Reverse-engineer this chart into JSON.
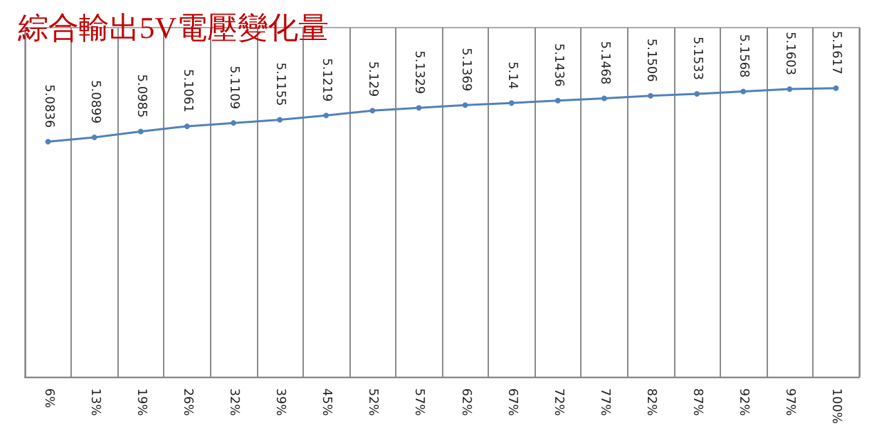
{
  "chart_data": {
    "type": "line",
    "title": "綜合輸出5V電壓變化量",
    "categories": [
      "6%",
      "13%",
      "19%",
      "26%",
      "32%",
      "39%",
      "45%",
      "52%",
      "57%",
      "62%",
      "67%",
      "72%",
      "77%",
      "82%",
      "87%",
      "92%",
      "97%",
      "100%"
    ],
    "series": [
      {
        "color": "#4f81bd",
        "values": [
          5.0836,
          5.0899,
          5.0985,
          5.1061,
          5.1109,
          5.1155,
          5.1219,
          5.129,
          5.1329,
          5.1369,
          5.14,
          5.1436,
          5.1468,
          5.1506,
          5.1533,
          5.1568,
          5.1603,
          5.1617
        ]
      }
    ],
    "ylim": [
      4.74,
      5.25
    ],
    "data_labels": true,
    "grid": "x",
    "marker": "circle",
    "tick_labels": "x"
  }
}
